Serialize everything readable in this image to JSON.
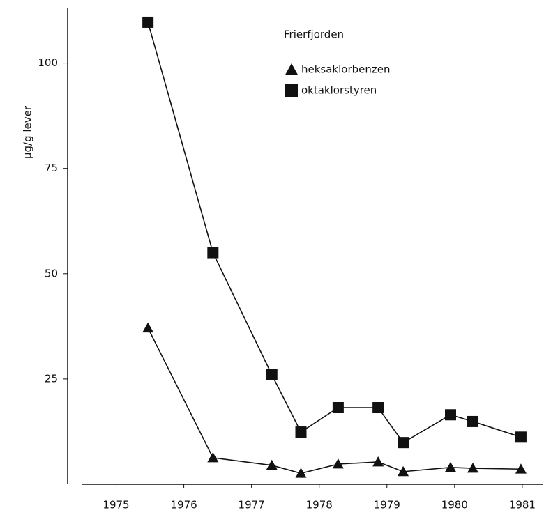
{
  "chart_data": {
    "type": "line",
    "y_label": "µg/g lever",
    "legend_title": "Frierfjorden",
    "x": [
      1975.97,
      1976.93,
      1977.8,
      1978.23,
      1978.78,
      1979.37,
      1979.74,
      1980.44,
      1980.77,
      1981.48
    ],
    "series": [
      {
        "name": "heksaklorbenzen",
        "color": "#111111",
        "marker": "triangle",
        "values": [
          37.1,
          6.3,
          4.5,
          2.6,
          4.8,
          5.3,
          3,
          4,
          3.8,
          3.6
        ]
      },
      {
        "name": "oktaklorstyren",
        "color": "#111111",
        "marker": "square",
        "values": [
          109.7,
          55,
          26,
          12.4,
          18.2,
          18.2,
          9.9,
          16.5,
          14.9,
          11.2
        ]
      }
    ],
    "xlim": [
      1975,
      1981.8
    ],
    "xticks": [
      {
        "value": 1975.5,
        "label": "1975"
      },
      {
        "value": 1976.5,
        "label": "1976"
      },
      {
        "value": 1977.5,
        "label": "1977"
      },
      {
        "value": 1978.5,
        "label": "1978"
      },
      {
        "value": 1979.5,
        "label": "1979"
      },
      {
        "value": 1980.5,
        "label": "1980"
      },
      {
        "value": 1981.5,
        "label": "1981"
      }
    ],
    "ylim": [
      0,
      113
    ],
    "yticks": [
      25,
      50,
      75,
      100
    ]
  }
}
